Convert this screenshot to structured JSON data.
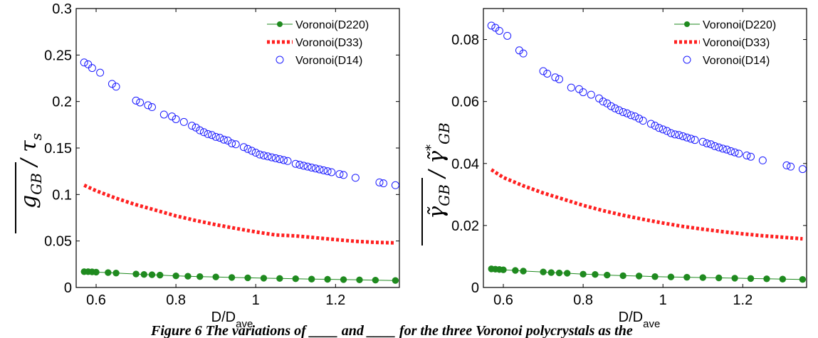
{
  "caption": "Figure 6 The variations of ____ and ____ for the three Voronoi polycrystals as the",
  "chart_data": [
    {
      "type": "scatter",
      "xlabel": "D/D",
      "xlabel_sub": "ave",
      "ylabel": "g_GB / τ_s",
      "xlim": [
        0.55,
        1.36
      ],
      "ylim": [
        0,
        0.3
      ],
      "xticks": [
        0.6,
        0.8,
        1,
        1.2
      ],
      "xtick_labels": [
        "0.6",
        "0.8",
        "1",
        "1.2"
      ],
      "yticks": [
        0,
        0.05,
        0.1,
        0.15,
        0.2,
        0.25,
        0.3
      ],
      "ytick_labels": [
        "0",
        "0.05",
        "0.1",
        "0.15",
        "0.2",
        "0.25",
        "0.3"
      ],
      "legend_position": "top-right",
      "series": [
        {
          "name": "Voronoi(D220)",
          "style": "green-dots-line",
          "color": "#1f8a1f",
          "x": [
            0.57,
            0.58,
            0.59,
            0.6,
            0.63,
            0.65,
            0.7,
            0.72,
            0.74,
            0.76,
            0.8,
            0.83,
            0.86,
            0.9,
            0.94,
            0.98,
            1.02,
            1.06,
            1.1,
            1.14,
            1.18,
            1.22,
            1.26,
            1.3,
            1.35
          ],
          "y": [
            0.017,
            0.017,
            0.0168,
            0.0165,
            0.016,
            0.0155,
            0.0145,
            0.014,
            0.0137,
            0.0133,
            0.0125,
            0.0121,
            0.0117,
            0.0113,
            0.0108,
            0.0104,
            0.01,
            0.0097,
            0.0094,
            0.009,
            0.0088,
            0.0085,
            0.0082,
            0.0079,
            0.0075
          ]
        },
        {
          "name": "Voronoi(D33)",
          "style": "red-dotted",
          "color": "#ff2020",
          "x": [
            0.57,
            0.6,
            0.65,
            0.7,
            0.75,
            0.8,
            0.85,
            0.9,
            0.95,
            1.0,
            1.05,
            1.1,
            1.15,
            1.2,
            1.25,
            1.3,
            1.35
          ],
          "y": [
            0.11,
            0.104,
            0.096,
            0.089,
            0.083,
            0.077,
            0.072,
            0.0675,
            0.0635,
            0.0598,
            0.0565,
            0.0555,
            0.0535,
            0.0515,
            0.0497,
            0.0485,
            0.048
          ]
        },
        {
          "name": "Voronoi(D14)",
          "style": "blue-circles",
          "color": "#1c1cff",
          "x": [
            0.57,
            0.58,
            0.59,
            0.61,
            0.64,
            0.65,
            0.7,
            0.71,
            0.73,
            0.74,
            0.77,
            0.79,
            0.8,
            0.82,
            0.84,
            0.85,
            0.86,
            0.87,
            0.88,
            0.89,
            0.9,
            0.91,
            0.92,
            0.93,
            0.94,
            0.95,
            0.97,
            0.98,
            0.99,
            1.0,
            1.01,
            1.02,
            1.03,
            1.04,
            1.05,
            1.06,
            1.07,
            1.08,
            1.1,
            1.11,
            1.12,
            1.13,
            1.14,
            1.15,
            1.16,
            1.17,
            1.18,
            1.19,
            1.21,
            1.22,
            1.25,
            1.31,
            1.32,
            1.35
          ],
          "y": [
            0.242,
            0.24,
            0.236,
            0.231,
            0.219,
            0.216,
            0.201,
            0.199,
            0.196,
            0.194,
            0.186,
            0.184,
            0.181,
            0.178,
            0.174,
            0.172,
            0.169,
            0.167,
            0.165,
            0.164,
            0.162,
            0.161,
            0.159,
            0.158,
            0.155,
            0.154,
            0.151,
            0.149,
            0.147,
            0.145,
            0.143,
            0.142,
            0.141,
            0.14,
            0.139,
            0.138,
            0.137,
            0.136,
            0.133,
            0.132,
            0.131,
            0.13,
            0.129,
            0.128,
            0.127,
            0.126,
            0.125,
            0.124,
            0.122,
            0.121,
            0.118,
            0.113,
            0.112,
            0.11
          ]
        }
      ]
    },
    {
      "type": "scatter",
      "xlabel": "D/D",
      "xlabel_sub": "ave",
      "ylabel": "γ̃_GB / γ̃*_GB",
      "xlim": [
        0.55,
        1.36
      ],
      "ylim": [
        0,
        0.09
      ],
      "xticks": [
        0.6,
        0.8,
        1,
        1.2
      ],
      "xtick_labels": [
        "0.6",
        "0.8",
        "1",
        "1.2"
      ],
      "yticks": [
        0,
        0.02,
        0.04,
        0.06,
        0.08
      ],
      "ytick_labels": [
        "0",
        "0.02",
        "0.04",
        "0.06",
        "0.08"
      ],
      "legend_position": "top-right",
      "series": [
        {
          "name": "Voronoi(D220)",
          "style": "green-dots-line",
          "color": "#1f8a1f",
          "x": [
            0.57,
            0.58,
            0.59,
            0.6,
            0.63,
            0.65,
            0.7,
            0.72,
            0.74,
            0.76,
            0.8,
            0.83,
            0.86,
            0.9,
            0.94,
            0.98,
            1.02,
            1.06,
            1.1,
            1.14,
            1.18,
            1.22,
            1.26,
            1.3,
            1.35
          ],
          "y": [
            0.006,
            0.0059,
            0.0058,
            0.0057,
            0.0055,
            0.0053,
            0.005,
            0.0048,
            0.0047,
            0.0046,
            0.0043,
            0.0042,
            0.004,
            0.0038,
            0.0037,
            0.0035,
            0.0034,
            0.0033,
            0.0032,
            0.0031,
            0.003,
            0.0029,
            0.0028,
            0.0027,
            0.0026
          ]
        },
        {
          "name": "Voronoi(D33)",
          "style": "red-dotted",
          "color": "#ff2020",
          "x": [
            0.57,
            0.6,
            0.65,
            0.7,
            0.75,
            0.8,
            0.85,
            0.9,
            0.95,
            1.0,
            1.05,
            1.1,
            1.15,
            1.2,
            1.25,
            1.3,
            1.35
          ],
          "y": [
            0.038,
            0.0355,
            0.0328,
            0.0305,
            0.0285,
            0.0265,
            0.0248,
            0.0233,
            0.022,
            0.0208,
            0.0197,
            0.0188,
            0.018,
            0.0173,
            0.0167,
            0.0162,
            0.0157
          ]
        },
        {
          "name": "Voronoi(D14)",
          "style": "blue-circles",
          "color": "#1c1cff",
          "x": [
            0.57,
            0.58,
            0.59,
            0.61,
            0.64,
            0.65,
            0.7,
            0.71,
            0.73,
            0.74,
            0.77,
            0.79,
            0.8,
            0.82,
            0.84,
            0.85,
            0.86,
            0.87,
            0.88,
            0.89,
            0.9,
            0.91,
            0.92,
            0.93,
            0.94,
            0.95,
            0.97,
            0.98,
            0.99,
            1.0,
            1.01,
            1.02,
            1.03,
            1.04,
            1.05,
            1.06,
            1.07,
            1.08,
            1.1,
            1.11,
            1.12,
            1.13,
            1.14,
            1.15,
            1.16,
            1.17,
            1.18,
            1.19,
            1.21,
            1.22,
            1.25,
            1.31,
            1.32,
            1.35
          ],
          "y": [
            0.0845,
            0.0838,
            0.0828,
            0.0812,
            0.0765,
            0.0755,
            0.0698,
            0.069,
            0.0678,
            0.0672,
            0.0645,
            0.064,
            0.063,
            0.0622,
            0.061,
            0.06,
            0.0594,
            0.0585,
            0.0578,
            0.0572,
            0.0566,
            0.0562,
            0.0556,
            0.0552,
            0.0545,
            0.0538,
            0.0528,
            0.0522,
            0.0515,
            0.051,
            0.0505,
            0.0498,
            0.0494,
            0.0492,
            0.0488,
            0.0484,
            0.048,
            0.0476,
            0.047,
            0.0465,
            0.0462,
            0.0456,
            0.0452,
            0.0448,
            0.0445,
            0.044,
            0.0436,
            0.0432,
            0.0426,
            0.0422,
            0.041,
            0.0394,
            0.039,
            0.0382
          ]
        }
      ]
    }
  ]
}
